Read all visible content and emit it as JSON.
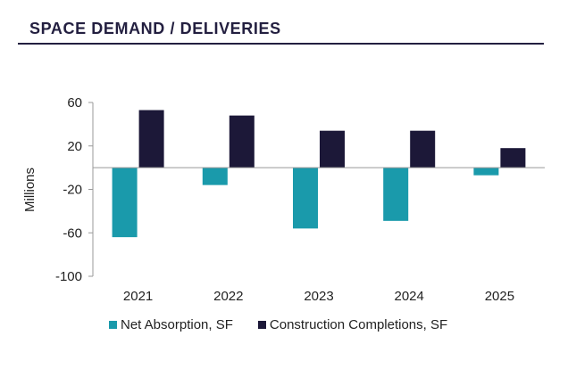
{
  "header": {
    "title": "SPACE DEMAND / DELIVERIES"
  },
  "chart_data": {
    "type": "bar",
    "title": "SPACE DEMAND / DELIVERIES",
    "xlabel": "",
    "ylabel": "Millions",
    "ylim": [
      -100,
      60
    ],
    "yticks": [
      60,
      20,
      -20,
      -60,
      -100
    ],
    "grid": false,
    "categories": [
      "2021",
      "2022",
      "2023",
      "2024",
      "2025"
    ],
    "series": [
      {
        "name": "Net Absorption, SF",
        "color": "#1a9aab",
        "values": [
          -64,
          -16,
          -56,
          -49,
          -7
        ]
      },
      {
        "name": "Construction Completions, SF",
        "color": "#1c1838",
        "values": [
          53,
          48,
          34,
          34,
          18
        ]
      }
    ],
    "legend_position": "bottom"
  }
}
